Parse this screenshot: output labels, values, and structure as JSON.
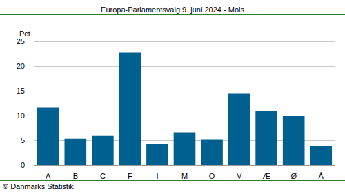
{
  "chart_data": {
    "type": "bar",
    "title": "Europa-Parlamentsvalg 9. juni 2024 - Mols",
    "y_label": "Pct.",
    "source": "© Danmarks Statistik",
    "categories": [
      "A",
      "B",
      "C",
      "F",
      "I",
      "M",
      "O",
      "V",
      "Æ",
      "Ø",
      "Å"
    ],
    "values": [
      11.6,
      5.3,
      6.0,
      22.7,
      4.2,
      6.6,
      5.2,
      14.5,
      10.9,
      10.0,
      3.9
    ],
    "color": "#00608f",
    "ylim": [
      0,
      25
    ],
    "yticks": [
      0,
      5,
      10,
      15,
      20,
      25
    ],
    "grid": true
  }
}
